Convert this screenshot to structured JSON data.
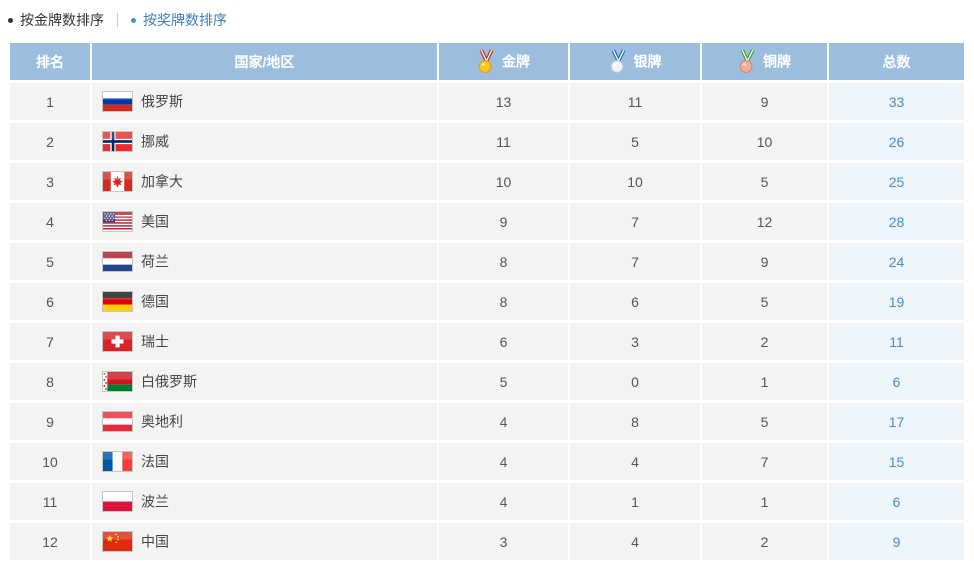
{
  "tabs": {
    "by_gold": "按金牌数排序",
    "by_medals": "按奖牌数排序"
  },
  "table": {
    "headers": {
      "rank": "排名",
      "country": "国家/地区",
      "gold": "金牌",
      "silver": "银牌",
      "bronze": "铜牌",
      "total": "总数"
    },
    "rows": [
      {
        "rank": 1,
        "country": "俄罗斯",
        "flag": "ru",
        "gold": 13,
        "silver": 11,
        "bronze": 9,
        "total": 33
      },
      {
        "rank": 2,
        "country": "挪威",
        "flag": "no",
        "gold": 11,
        "silver": 5,
        "bronze": 10,
        "total": 26
      },
      {
        "rank": 3,
        "country": "加拿大",
        "flag": "ca",
        "gold": 10,
        "silver": 10,
        "bronze": 5,
        "total": 25
      },
      {
        "rank": 4,
        "country": "美国",
        "flag": "us",
        "gold": 9,
        "silver": 7,
        "bronze": 12,
        "total": 28
      },
      {
        "rank": 5,
        "country": "荷兰",
        "flag": "nl",
        "gold": 8,
        "silver": 7,
        "bronze": 9,
        "total": 24
      },
      {
        "rank": 6,
        "country": "德国",
        "flag": "de",
        "gold": 8,
        "silver": 6,
        "bronze": 5,
        "total": 19
      },
      {
        "rank": 7,
        "country": "瑞士",
        "flag": "ch",
        "gold": 6,
        "silver": 3,
        "bronze": 2,
        "total": 11
      },
      {
        "rank": 8,
        "country": "白俄罗斯",
        "flag": "by",
        "gold": 5,
        "silver": 0,
        "bronze": 1,
        "total": 6
      },
      {
        "rank": 9,
        "country": "奥地利",
        "flag": "at",
        "gold": 4,
        "silver": 8,
        "bronze": 5,
        "total": 17
      },
      {
        "rank": 10,
        "country": "法国",
        "flag": "fr",
        "gold": 4,
        "silver": 4,
        "bronze": 7,
        "total": 15
      },
      {
        "rank": 11,
        "country": "波兰",
        "flag": "pl",
        "gold": 4,
        "silver": 1,
        "bronze": 1,
        "total": 6
      },
      {
        "rank": 12,
        "country": "中国",
        "flag": "cn",
        "gold": 3,
        "silver": 4,
        "bronze": 2,
        "total": 9
      }
    ]
  },
  "colors": {
    "header_bg": "#9cbede",
    "row_bg": "#f3f3f1",
    "total_bg": "#edf5fb",
    "total_text": "#4b8bc2",
    "link": "#3f7cb6",
    "medal_gold": {
      "ribbon": "#c8382c",
      "fill": "#f9c623",
      "stroke": "#dfa10e"
    },
    "medal_silver": {
      "ribbon": "#2f6fc0",
      "fill": "#f4f4f4",
      "stroke": "#c0c6cc"
    },
    "medal_bronze": {
      "ribbon": "#43a047",
      "fill": "#eeb09a",
      "stroke": "#cf8a70"
    }
  }
}
